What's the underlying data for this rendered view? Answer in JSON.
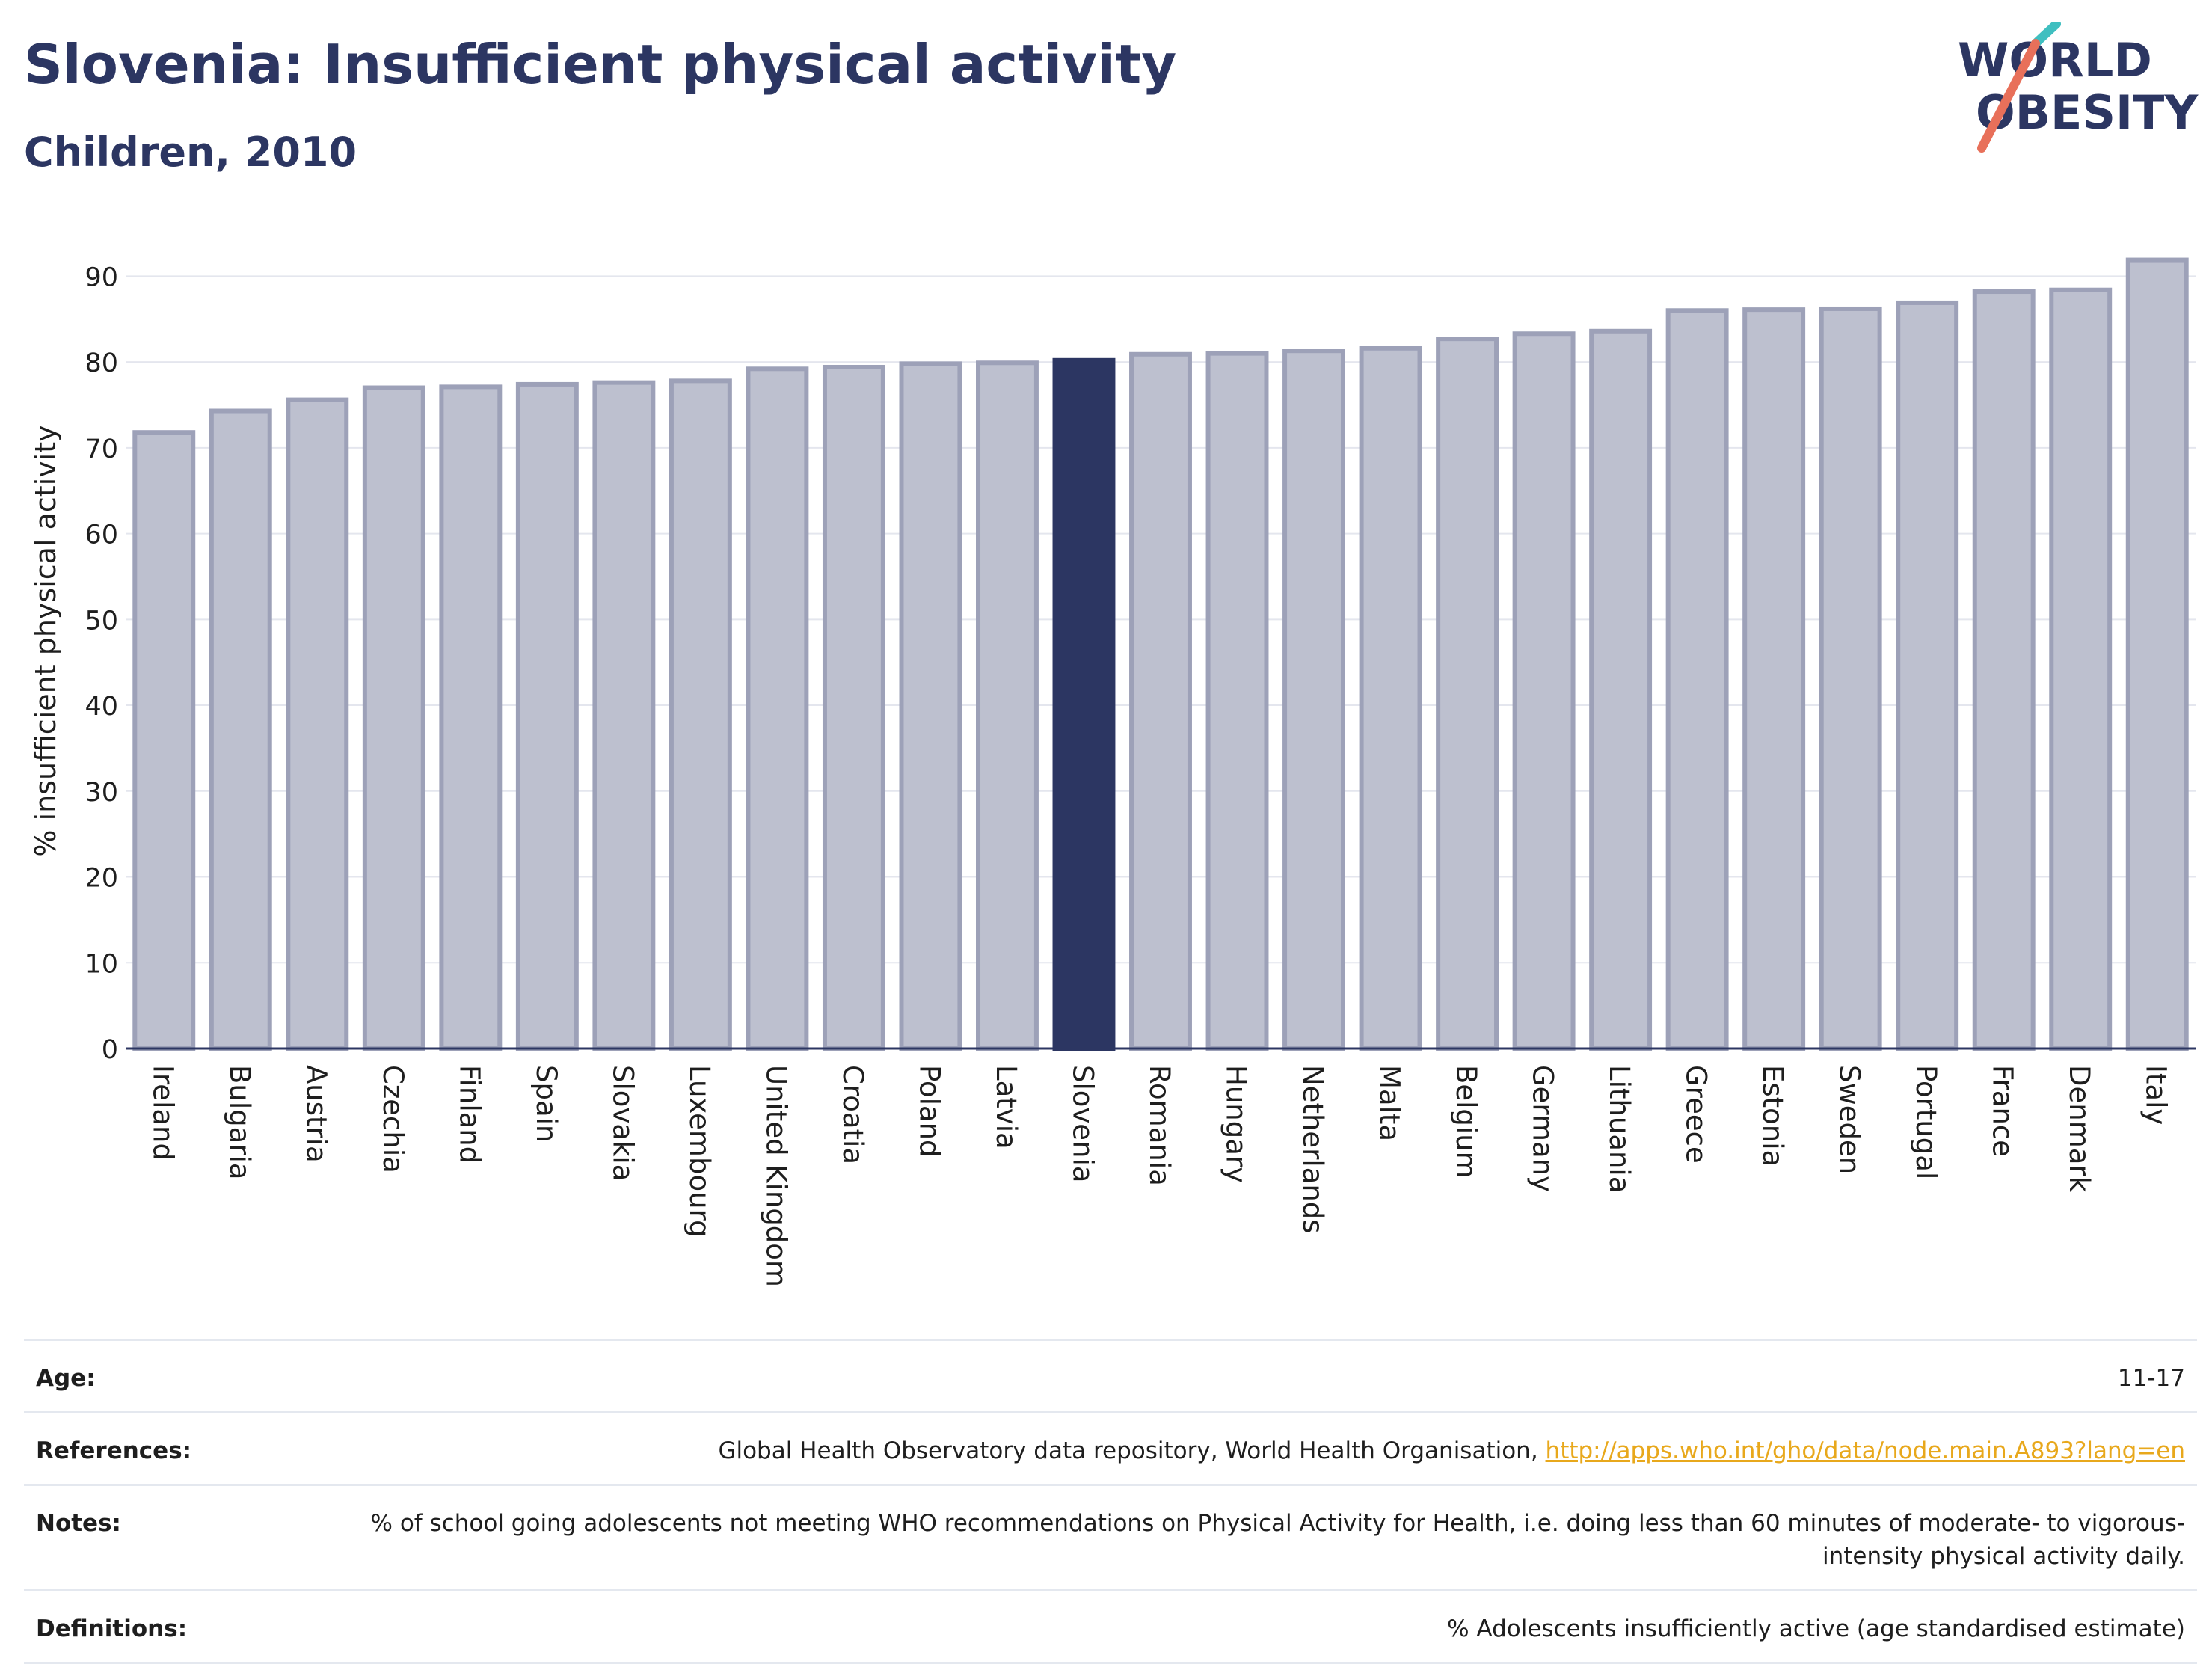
{
  "header": {
    "title": "Slovenia: Insufficient physical activity",
    "subtitle": "Children, 2010"
  },
  "logo": {
    "line1": "WORLD",
    "line2": "OBESITY",
    "accent_colors": [
      "#3fbfc0",
      "#e8705a"
    ]
  },
  "colors": {
    "bar": "#bdc0cf",
    "bar_border": "#9da1b8",
    "highlight": "#2c3662",
    "gridline": "#e4e6ee",
    "title": "#2c3662",
    "link": "#e8a81c"
  },
  "chart_data": {
    "type": "bar",
    "ylabel": "% insufficient physical activity",
    "xlabel": "",
    "ylim": [
      0,
      95
    ],
    "yticks": [
      0,
      10,
      20,
      30,
      40,
      50,
      60,
      70,
      80,
      90
    ],
    "grid": true,
    "highlight": "Slovenia",
    "categories": [
      "Ireland",
      "Bulgaria",
      "Austria",
      "Czechia",
      "Finland",
      "Spain",
      "Slovakia",
      "Luxembourg",
      "United Kingdom",
      "Croatia",
      "Poland",
      "Latvia",
      "Slovenia",
      "Romania",
      "Hungary",
      "Netherlands",
      "Malta",
      "Belgium",
      "Germany",
      "Lithuania",
      "Greece",
      "Estonia",
      "Sweden",
      "Portugal",
      "France",
      "Denmark",
      "Italy"
    ],
    "values": [
      71.8,
      74.3,
      75.6,
      77.0,
      77.1,
      77.4,
      77.6,
      77.8,
      79.2,
      79.4,
      79.8,
      79.9,
      80.2,
      80.9,
      81.0,
      81.3,
      81.6,
      82.7,
      83.3,
      83.6,
      86.0,
      86.1,
      86.2,
      86.9,
      88.2,
      88.4,
      91.9
    ]
  },
  "footer": {
    "age_label": "Age:",
    "age_value": "11-17",
    "references_label": "References:",
    "references_text": "Global Health Observatory data repository, World Health Organisation,",
    "references_link": "http://apps.who.int/gho/data/node.main.A893?lang=en",
    "notes_label": "Notes:",
    "notes_text": "% of school going adolescents not meeting WHO recommendations on Physical Activity for Health, i.e. doing less than 60 minutes of moderate- to vigorous-intensity physical activity daily.",
    "definitions_label": "Definitions:",
    "definitions_text": "% Adolescents insufficiently active (age standardised estimate)"
  }
}
